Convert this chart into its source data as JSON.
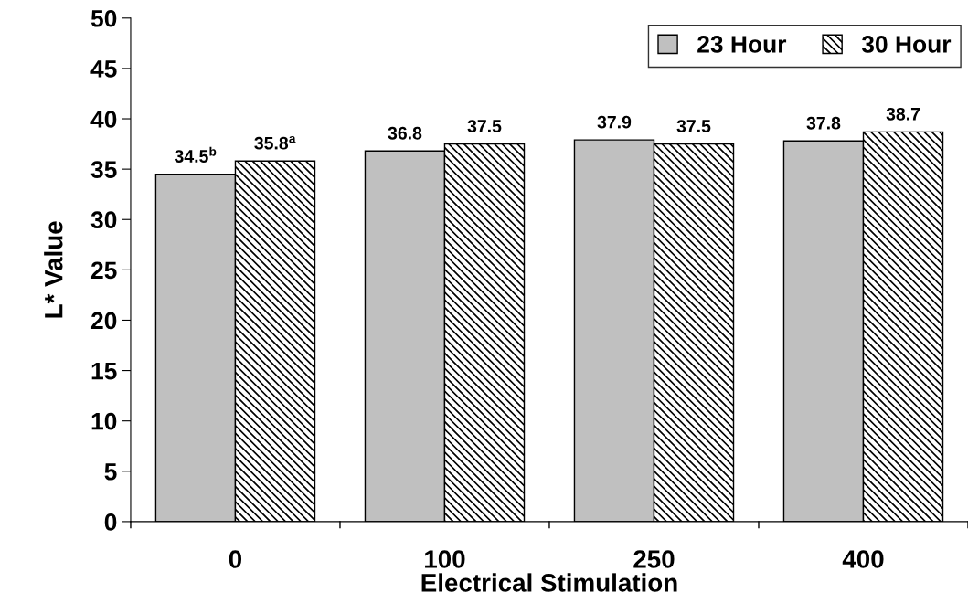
{
  "chart_data": {
    "type": "bar",
    "xlabel": "Electrical Stimulation",
    "ylabel": "L* Value",
    "categories": [
      "0",
      "100",
      "250",
      "400"
    ],
    "series": [
      {
        "name": "23 Hour",
        "color": "#c0c0c0",
        "values": [
          34.5,
          36.8,
          37.9,
          37.8
        ],
        "value_labels": [
          "34.5$^{b}$",
          "36.8",
          "37.9",
          "37.8"
        ]
      },
      {
        "name": "30 Hour",
        "color": "#000000",
        "values": [
          35.8,
          37.5,
          37.5,
          38.7
        ],
        "value_labels": [
          "35.8$^{a}$",
          "37.5",
          "37.5",
          "38.7"
        ]
      }
    ],
    "ylim": [
      0,
      50
    ],
    "yticks": [
      0,
      5,
      10,
      15,
      20,
      25,
      30,
      35,
      40,
      45,
      50
    ],
    "legend": "top right",
    "grid": false
  }
}
